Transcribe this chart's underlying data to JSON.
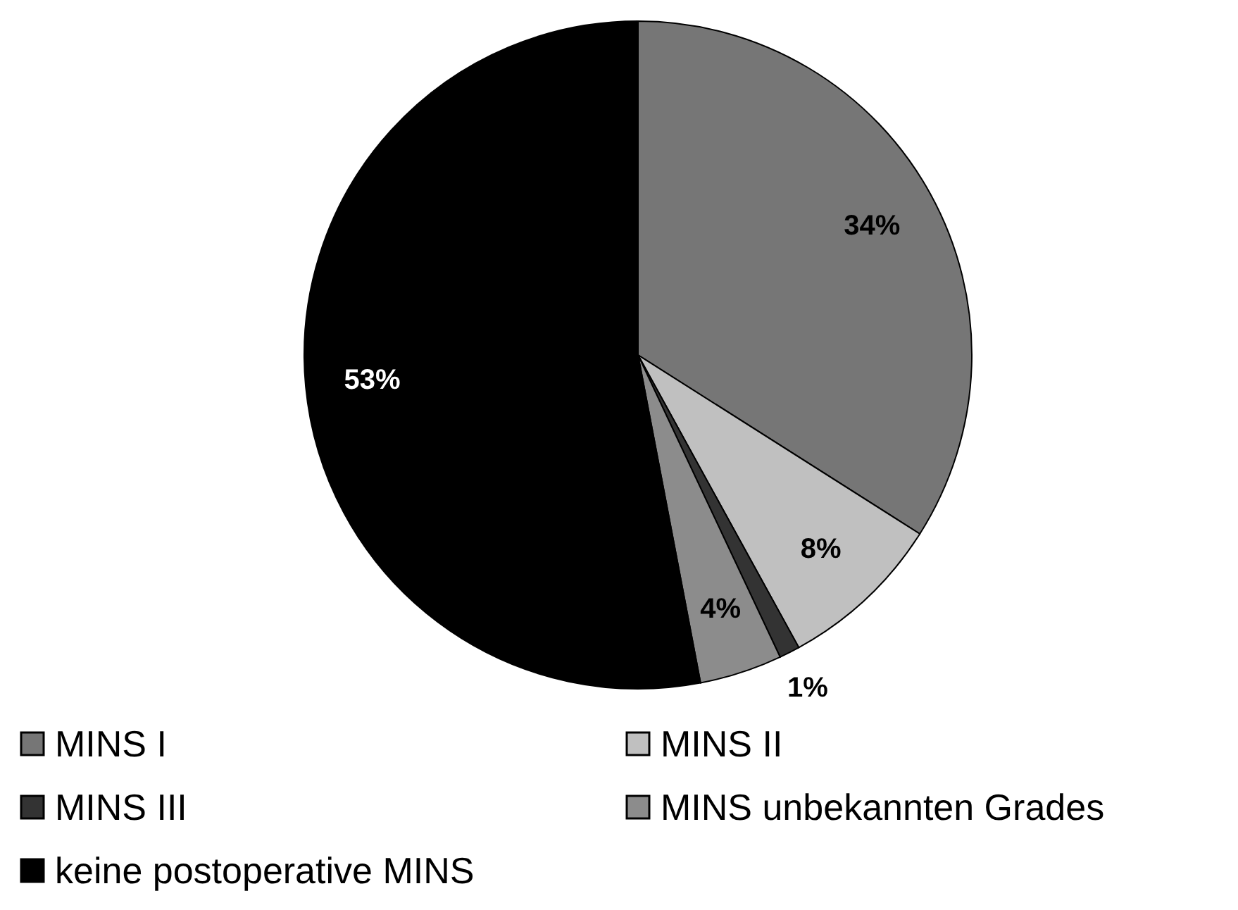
{
  "chart_data": {
    "type": "pie",
    "categories": [
      "MINS I",
      "MINS II",
      "MINS III",
      "MINS unbekannten Grades",
      "keine postoperative MINS"
    ],
    "values": [
      34,
      8,
      1,
      4,
      53
    ],
    "colors": [
      "#767676",
      "#c0c0c0",
      "#333333",
      "#8c8c8c",
      "#000000"
    ],
    "value_labels": [
      "34%",
      "8%",
      "1%",
      "4%",
      "53%"
    ],
    "legend": "bottom"
  }
}
